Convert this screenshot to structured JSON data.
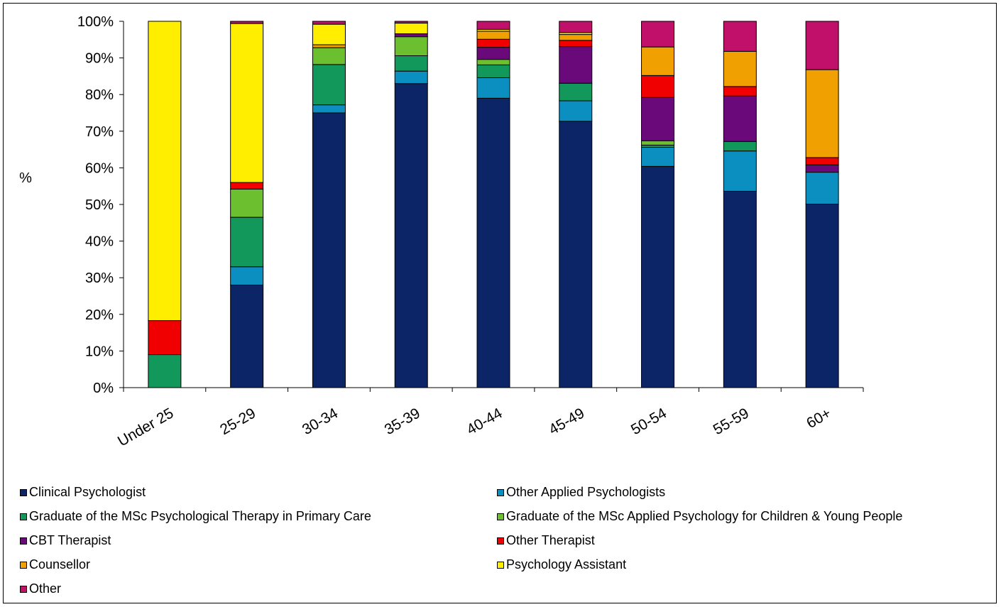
{
  "chart_data": {
    "type": "bar",
    "stacked": true,
    "ylabel": "%",
    "ylim": [
      0,
      100
    ],
    "yticks": [
      "0%",
      "10%",
      "20%",
      "30%",
      "40%",
      "50%",
      "60%",
      "70%",
      "80%",
      "90%",
      "100%"
    ],
    "categories": [
      "Under 25",
      "25-29",
      "30-34",
      "35-39",
      "40-44",
      "45-49",
      "50-54",
      "55-59",
      "60+"
    ],
    "series": [
      {
        "name": "Clinical Psychologist",
        "color": "#0b2566",
        "values": [
          0,
          28,
          75,
          83,
          79,
          72.7,
          60.4,
          53.6,
          50.1
        ]
      },
      {
        "name": "Other Applied Psychologists",
        "color": "#0b8fc0",
        "values": [
          0,
          5,
          2.2,
          3.4,
          5.6,
          5.6,
          5.2,
          11,
          8.7
        ]
      },
      {
        "name": "Graduate of the MSc Psychological Therapy in Primary Care",
        "color": "#12985a",
        "values": [
          9,
          13.5,
          11,
          4.2,
          3.5,
          4.8,
          0.6,
          2.6,
          0
        ]
      },
      {
        "name": "Graduate of the MSc Applied Psychology for Children & Young People",
        "color": "#6cbf2e",
        "values": [
          0,
          7.7,
          4.6,
          5.2,
          1.5,
          0,
          1.2,
          0,
          0
        ]
      },
      {
        "name": "CBT Therapist",
        "color": "#6a0a7a",
        "values": [
          0,
          0,
          0,
          0.8,
          3.3,
          10,
          11.8,
          12.4,
          2
        ]
      },
      {
        "name": "Other Therapist",
        "color": "#f00000",
        "values": [
          9.3,
          1.8,
          0,
          0,
          2.2,
          1.7,
          6,
          2.6,
          2
        ]
      },
      {
        "name": "Counsellor",
        "color": "#f0a000",
        "values": [
          0,
          0,
          0.8,
          0,
          2.2,
          1.6,
          7.8,
          9.6,
          24
        ]
      },
      {
        "name": "Psychology Assistant",
        "color": "#ffee00",
        "values": [
          81.7,
          43.4,
          5.6,
          2.9,
          0.5,
          0.5,
          0,
          0,
          0
        ]
      },
      {
        "name": "Other",
        "color": "#c0106a",
        "values": [
          0,
          0.6,
          0.8,
          0.5,
          2.2,
          3.1,
          7,
          8.2,
          13.2
        ]
      }
    ],
    "legend_position": "bottom"
  }
}
